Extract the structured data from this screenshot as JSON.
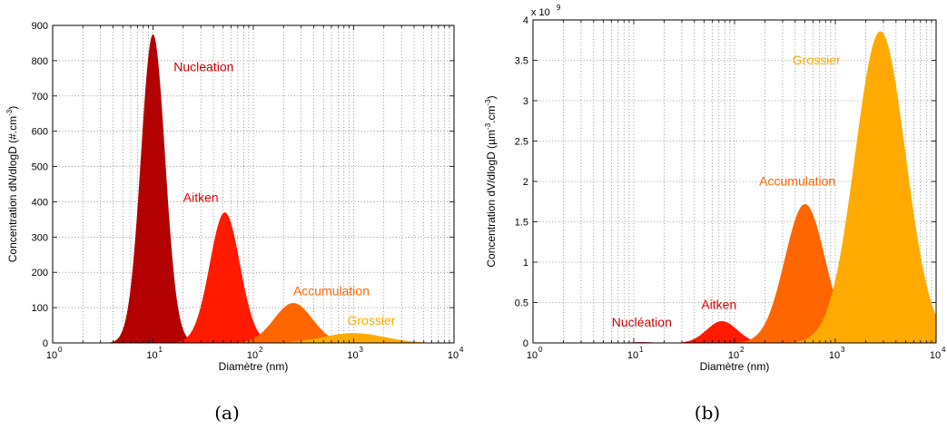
{
  "chart_data": [
    {
      "type": "area",
      "panel": "(a)",
      "xlabel": "Diamètre (nm)",
      "ylabel": "Concentration dN/dlogD (#.cm",
      "ylabel_sup": "-3",
      "ylabel_end": ")",
      "xscale": "log",
      "xlim": [
        1,
        10000
      ],
      "ylim": [
        0,
        900
      ],
      "yticks": [
        0,
        100,
        200,
        300,
        400,
        500,
        600,
        700,
        800,
        900
      ],
      "y_multiplier": "",
      "grid": true,
      "series": [
        {
          "name": "Nucleation",
          "color": "#b30000",
          "peak_diameter_nm": 10,
          "peak_value": 875,
          "width_decades": 0.12
        },
        {
          "name": "Aitken",
          "color": "#ff1a00",
          "peak_diameter_nm": 52,
          "peak_value": 370,
          "width_decades": 0.15
        },
        {
          "name": "Accumulation",
          "color": "#ff6600",
          "peak_diameter_nm": 250,
          "peak_value": 113,
          "width_decades": 0.19
        },
        {
          "name": "Grossier",
          "color": "#ffaa00",
          "peak_diameter_nm": 1000,
          "peak_value": 28,
          "width_decades": 0.3
        }
      ],
      "label_positions": [
        {
          "text": "Nucleation",
          "x": 32,
          "y": 770,
          "color": "#cc0000"
        },
        {
          "text": "Aitken",
          "x": 30,
          "y": 400,
          "color": "#e60000"
        },
        {
          "text": "Accumulation",
          "x": 600,
          "y": 135,
          "color": "#ff6600"
        },
        {
          "text": "Grossier",
          "x": 1500,
          "y": 52,
          "color": "#ffaa00"
        }
      ]
    },
    {
      "type": "area",
      "panel": "(b)",
      "xlabel": "Diamètre (nm)",
      "ylabel": "Concentration dV/dlogD (µm",
      "ylabel_sup": "-3",
      "ylabel_mid": ".cm",
      "ylabel_sup2": "-3",
      "ylabel_end": ")",
      "xscale": "log",
      "xlim": [
        1,
        10000
      ],
      "ylim": [
        0,
        4
      ],
      "yticks": [
        0,
        0.5,
        1,
        1.5,
        2,
        2.5,
        3,
        3.5,
        4
      ],
      "y_multiplier": "x 10",
      "y_multiplier_exp": "9",
      "grid": true,
      "series": [
        {
          "name": "Nucléation",
          "color": "#b30000",
          "peak_diameter_nm": 12,
          "peak_value": 0.01,
          "width_decades": 0.12
        },
        {
          "name": "Aitken",
          "color": "#ff1a00",
          "peak_diameter_nm": 75,
          "peak_value": 0.27,
          "width_decades": 0.15
        },
        {
          "name": "Accumulation",
          "color": "#ff6600",
          "peak_diameter_nm": 500,
          "peak_value": 1.72,
          "width_decades": 0.2
        },
        {
          "name": "Grossier",
          "color": "#ffaa00",
          "peak_diameter_nm": 2800,
          "peak_value": 3.86,
          "width_decades": 0.25
        }
      ],
      "label_positions": [
        {
          "text": "Nucléation",
          "x": 12,
          "y": 0.2,
          "color": "#cc0000"
        },
        {
          "text": "Aitken",
          "x": 70,
          "y": 0.42,
          "color": "#e60000"
        },
        {
          "text": "Accumulation",
          "x": 420,
          "y": 1.95,
          "color": "#ff6600"
        },
        {
          "text": "Grossier",
          "x": 650,
          "y": 3.45,
          "color": "#ffaa00"
        }
      ]
    }
  ],
  "captions": [
    "(a)",
    "(b)"
  ]
}
